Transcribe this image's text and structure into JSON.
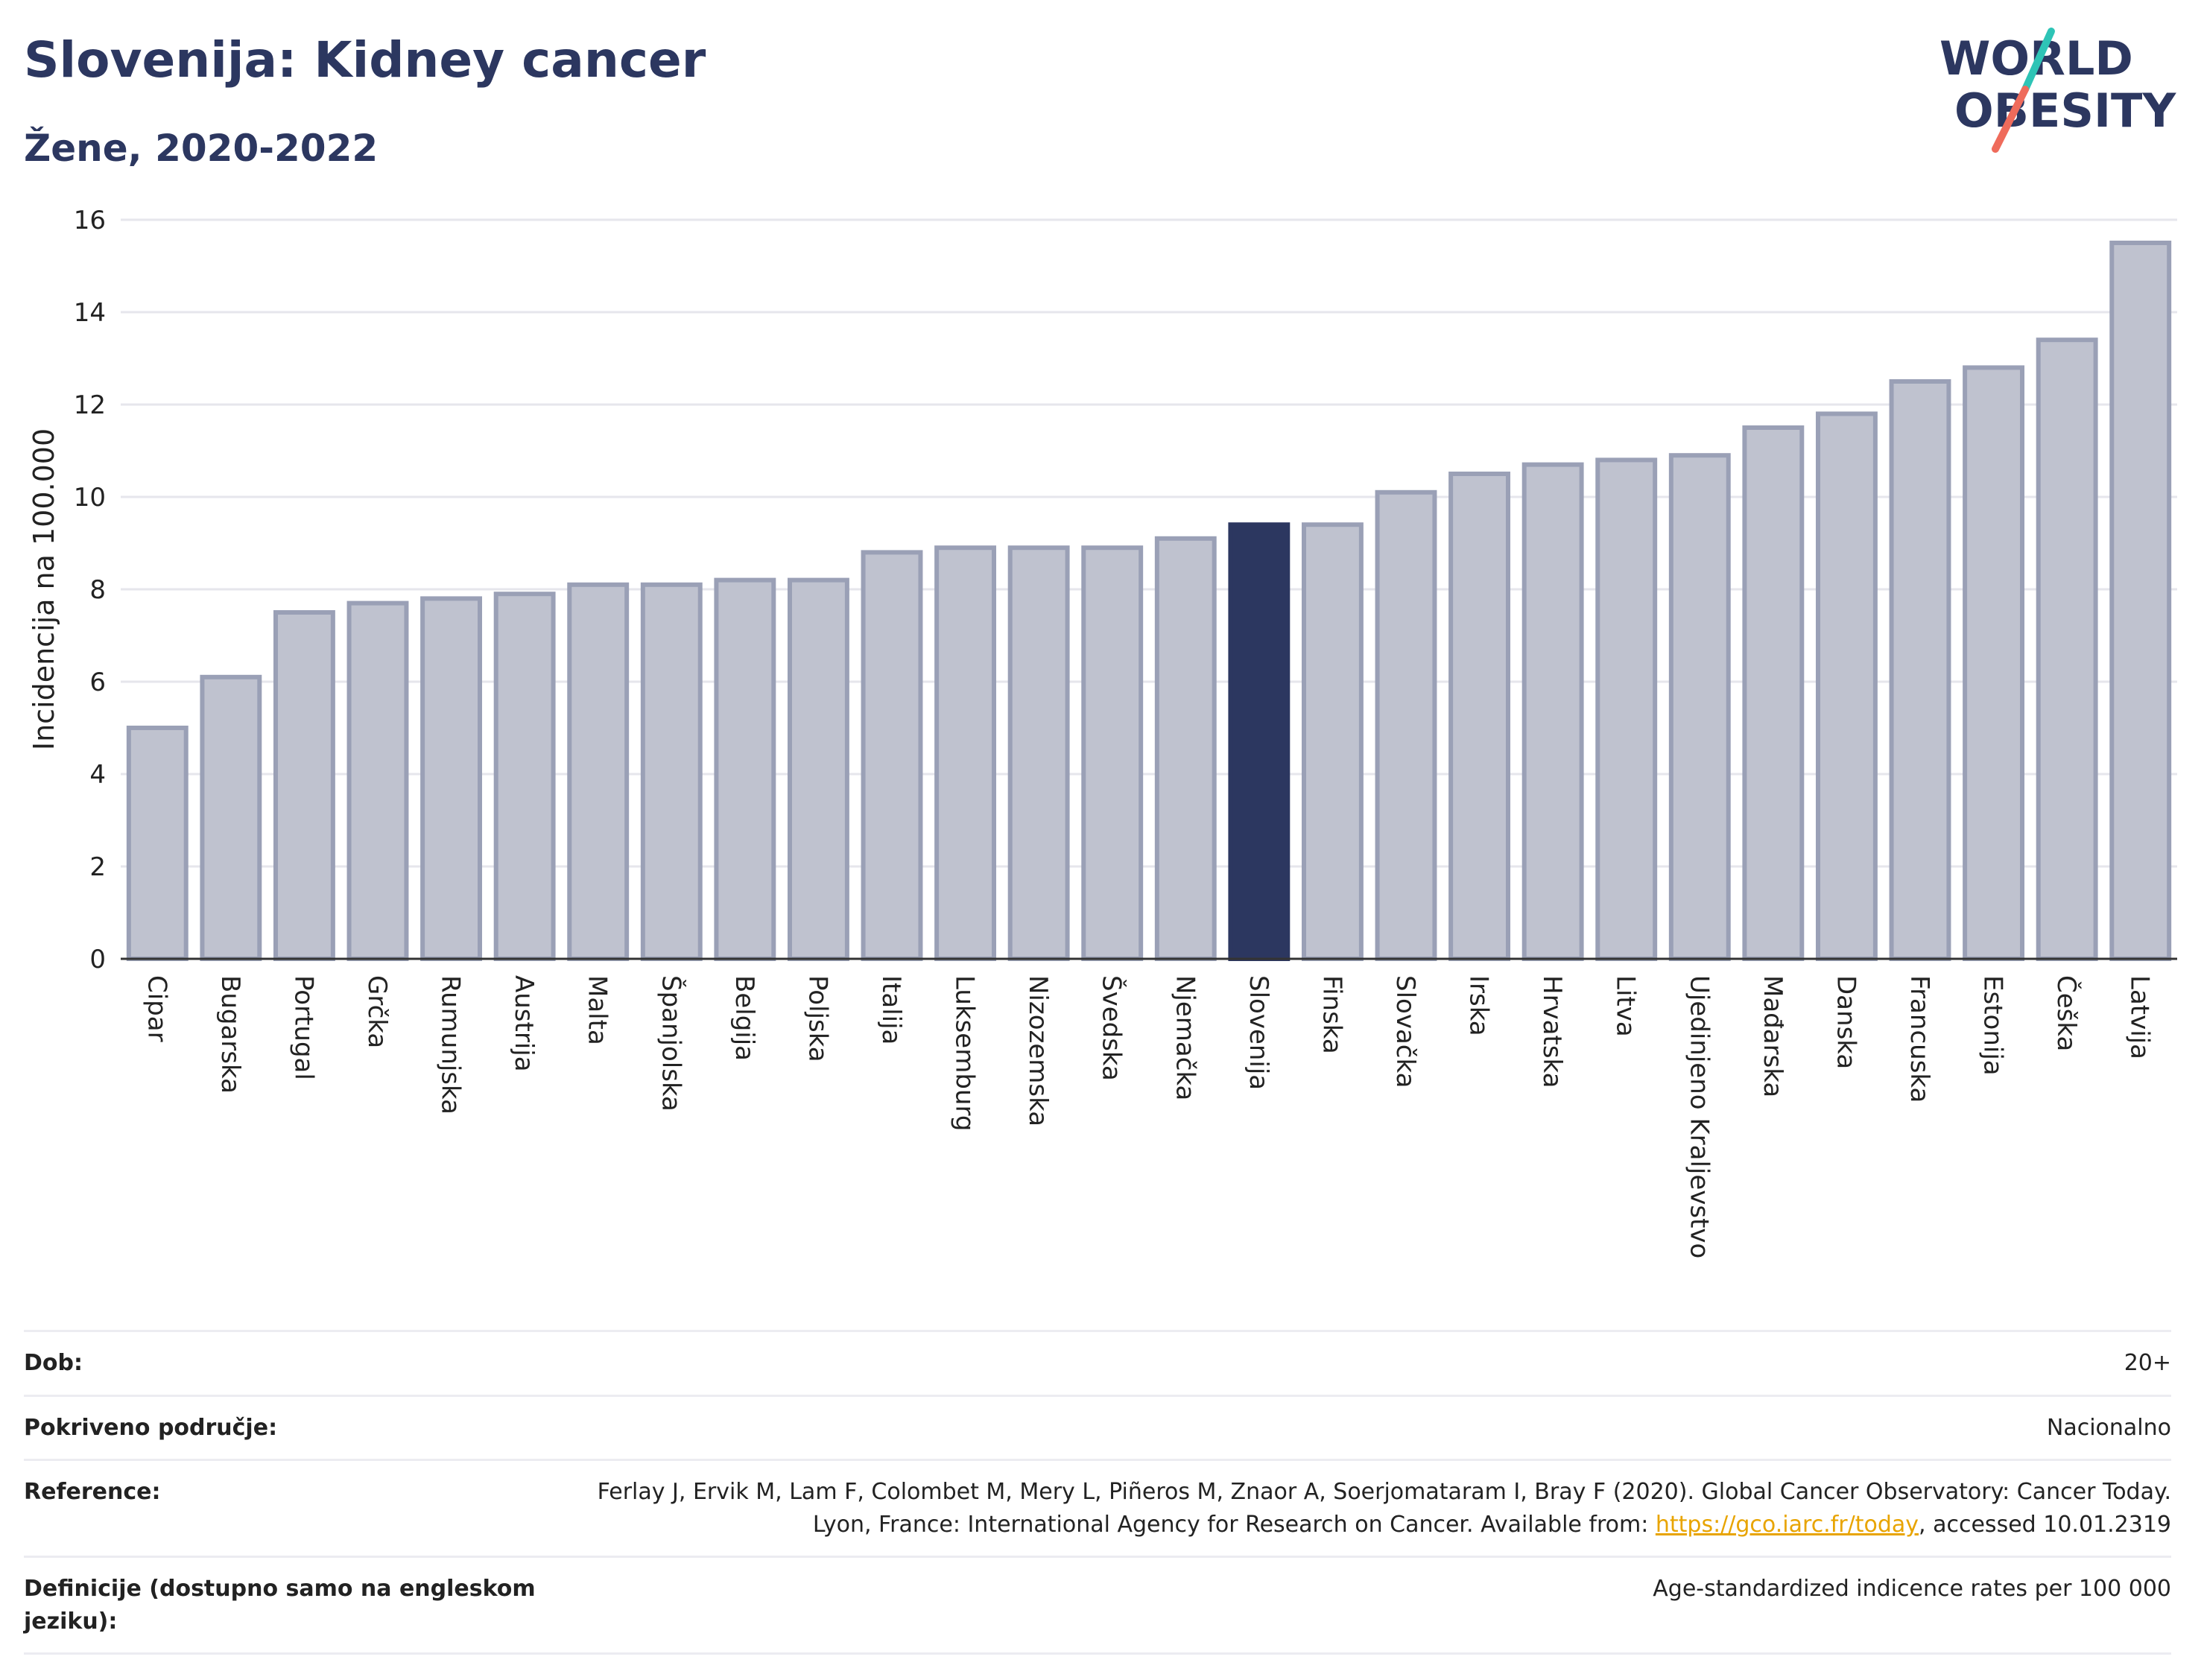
{
  "header": {
    "title": "Slovenija: Kidney cancer",
    "subtitle": "Žene, 2020-2022",
    "logo_line1": "WORLD",
    "logo_line2": "OBESITY"
  },
  "colors": {
    "bar": "#bfc2cf",
    "bar_border": "#9aa0b6",
    "highlight": "#2c3760",
    "grid": "#e6e6ec",
    "axis": "#333333",
    "logo_navy": "#2c3760",
    "logo_teal": "#2ec4b6",
    "logo_coral": "#ef6b5b",
    "link": "#e8a400"
  },
  "chart_data": {
    "type": "bar",
    "ylabel": "Incidencija na 100.000",
    "ylim": [
      0,
      16
    ],
    "yticks": [
      0,
      2,
      4,
      6,
      8,
      10,
      12,
      14,
      16
    ],
    "grid": true,
    "highlight": "Slovenija",
    "categories": [
      "Cipar",
      "Bugarska",
      "Portugal",
      "Grčka",
      "Rumunjska",
      "Austrija",
      "Malta",
      "Španjolska",
      "Belgija",
      "Poljska",
      "Italija",
      "Luksemburg",
      "Nizozemska",
      "Švedska",
      "Njemačka",
      "Slovenija",
      "Finska",
      "Slovačka",
      "Irska",
      "Hrvatska",
      "Litva",
      "Ujedinjeno Kraljevstvo",
      "Mađarska",
      "Danska",
      "Francuska",
      "Estonija",
      "Češka",
      "Latvija"
    ],
    "values": [
      5.0,
      6.1,
      7.5,
      7.7,
      7.8,
      7.9,
      8.1,
      8.1,
      8.2,
      8.2,
      8.8,
      8.9,
      8.9,
      8.9,
      9.1,
      9.4,
      9.4,
      10.1,
      10.5,
      10.7,
      10.8,
      10.9,
      11.5,
      11.8,
      12.5,
      12.8,
      13.4,
      15.5
    ]
  },
  "info_table": [
    {
      "key": "Dob:",
      "value": "20+"
    },
    {
      "key": "Pokriveno područje:",
      "value": "Nacionalno"
    },
    {
      "key": "Reference:",
      "value_pre": "Ferlay J, Ervik M, Lam F, Colombet M, Mery L, Piñeros M, Znaor A, Soerjomataram I, Bray F (2020). Global Cancer Observatory: Cancer Today. Lyon, France: International Agency for Research on Cancer. Available from: ",
      "link": "https://gco.iarc.fr/today",
      "value_post": ", accessed 10.01.2319"
    },
    {
      "key": "Definicije (dostupno samo na engleskom jeziku):",
      "value": "Age-standardized indicence rates per 100 000"
    }
  ]
}
